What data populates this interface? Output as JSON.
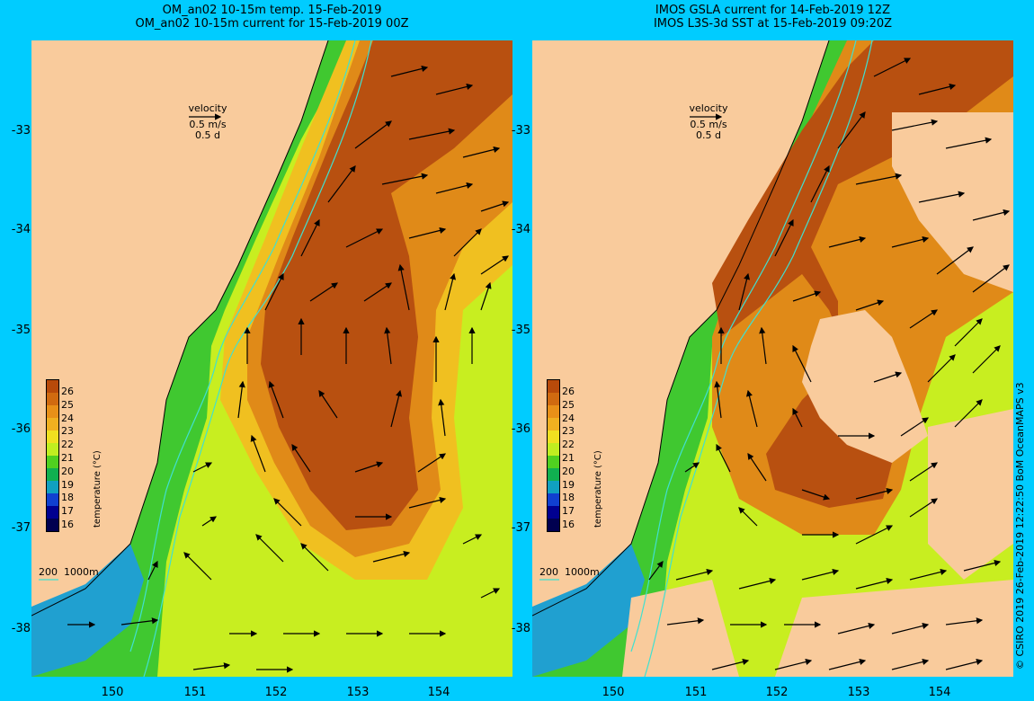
{
  "panels": {
    "left": {
      "title_line1": "OM_an02 10-15m temp. 15-Feb-2019",
      "title_line2": "OM_an02 10-15m current for 15-Feb-2019 00Z"
    },
    "right": {
      "title_line1": "IMOS GSLA current for 14-Feb-2019 12Z",
      "title_line2": "IMOS L3S-3d SST at 15-Feb-2019 09:20Z"
    }
  },
  "velocity_legend": {
    "title": "velocity",
    "speed": "0.5 m/s",
    "duration": "0.5 d"
  },
  "depth_legend": {
    "contour1": "200",
    "contour2": "1000m"
  },
  "colorbar": {
    "title": "temperature (°C)",
    "labels": [
      "26",
      "25",
      "24",
      "23",
      "22",
      "21",
      "20",
      "19",
      "18",
      "17",
      "16"
    ],
    "colors": [
      "#b84a0a",
      "#d06a10",
      "#e89018",
      "#f0b020",
      "#f0e020",
      "#c0ee20",
      "#50d020",
      "#10b050",
      "#10a0c0",
      "#1040d0",
      "#000090",
      "#000050"
    ]
  },
  "axes": {
    "latitude_ticks": [
      "-33",
      "-34",
      "-35",
      "-36",
      "-37",
      "-38"
    ],
    "longitude_ticks": [
      "150",
      "151",
      "152",
      "153",
      "154"
    ]
  },
  "copyright": "© CSIRO 2019   26-Feb-2019 12:22:50 BoM OceanMAPS v3",
  "colors": {
    "background": "#00ccff",
    "land": "#f9cb9c",
    "isobath": "#40e0d0",
    "warm_core": "#b85010",
    "warm": "#e08a18",
    "mid": "#f0c020",
    "cool": "#c8ee20",
    "green": "#40c830",
    "coastal_blue": "#20a0d0"
  }
}
